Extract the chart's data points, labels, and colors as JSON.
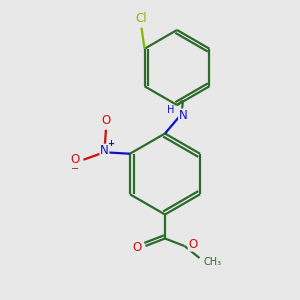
{
  "background_color": "#e8e8e8",
  "bond_color": "#2d6b2d",
  "bond_width": 1.6,
  "atom_colors": {
    "N": "#1010cc",
    "O": "#cc1010",
    "Cl": "#82b800",
    "C": "#2d6b2d"
  },
  "figsize": [
    3.0,
    3.0
  ],
  "dpi": 100,
  "xlim": [
    0,
    10
  ],
  "ylim": [
    0,
    10
  ]
}
